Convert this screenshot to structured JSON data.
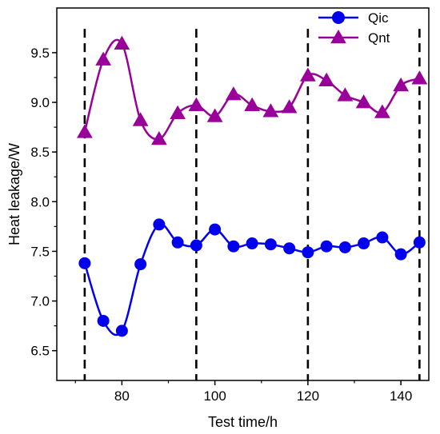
{
  "chart_data": {
    "type": "line",
    "xlabel": "Test time/h",
    "ylabel": "Heat leakage/W",
    "xlim": [
      66,
      146
    ],
    "ylim": [
      6.2,
      9.95
    ],
    "xticks": [
      80,
      100,
      120,
      140
    ],
    "yticks": [
      6.5,
      7.0,
      7.5,
      8.0,
      8.5,
      9.0,
      9.5
    ],
    "ytick_labels": [
      "6.5",
      "7.0",
      "7.5",
      "8.0",
      "8.5",
      "9.0",
      "9.5"
    ],
    "vertical_dashed_lines_x": [
      72,
      96,
      120,
      144
    ],
    "legend_position": "top-right",
    "grid": false,
    "series": [
      {
        "name": "Qic",
        "color": "#0000ee",
        "marker": "circle",
        "x": [
          72,
          76,
          80,
          84,
          88,
          92,
          96,
          100,
          104,
          108,
          112,
          116,
          120,
          124,
          128,
          132,
          136,
          140,
          144
        ],
        "values": [
          7.38,
          6.8,
          6.7,
          7.37,
          7.77,
          7.59,
          7.56,
          7.72,
          7.55,
          7.58,
          7.57,
          7.53,
          7.49,
          7.55,
          7.54,
          7.58,
          7.64,
          7.47,
          7.59
        ]
      },
      {
        "name": "Qnt",
        "color": "#990099",
        "marker": "triangle",
        "x": [
          72,
          76,
          80,
          84,
          88,
          92,
          96,
          100,
          104,
          108,
          112,
          116,
          120,
          124,
          128,
          132,
          136,
          140,
          144
        ],
        "values": [
          8.7,
          9.43,
          9.59,
          8.82,
          8.63,
          8.89,
          8.97,
          8.86,
          9.08,
          8.97,
          8.91,
          8.95,
          9.27,
          9.22,
          9.07,
          9.0,
          8.9,
          9.17,
          9.24
        ]
      }
    ]
  }
}
